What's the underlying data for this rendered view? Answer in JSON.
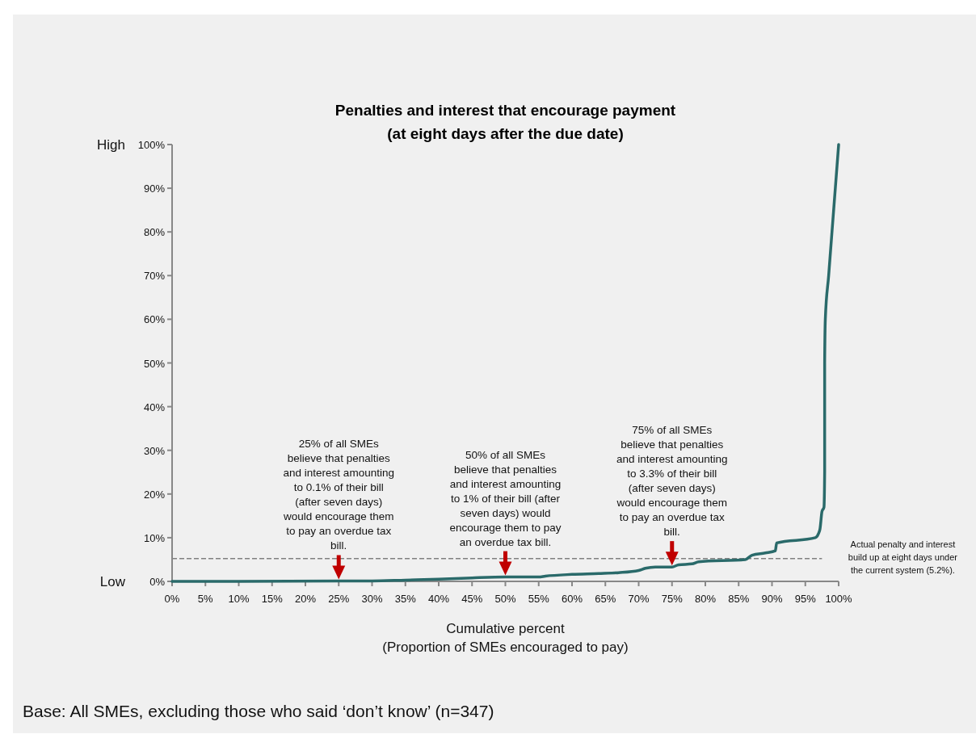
{
  "chart_data": {
    "type": "line",
    "title": "Penalties and interest that encourage payment",
    "subtitle": "(at eight days after the due date)",
    "xlabel": "Cumulative percent\n(Proportion of SMEs encouraged to pay)",
    "x": [
      0,
      10,
      25,
      30,
      35,
      40,
      45,
      50,
      55,
      56,
      60,
      64,
      67,
      70,
      71,
      72.5,
      75,
      76,
      78,
      79,
      86,
      87,
      89,
      90.5,
      90.7,
      96.5,
      97,
      97.2,
      97.5,
      97.8,
      97.9,
      97.9,
      98,
      98.5,
      99,
      99.5,
      100
    ],
    "series": [
      {
        "color": "#2a6a6a",
        "values": [
          0,
          0,
          0.1,
          0.1,
          0.3,
          0.5,
          0.8,
          1,
          1,
          1.2,
          1.6,
          1.8,
          2,
          2.5,
          3,
          3.3,
          3.3,
          3.8,
          4,
          4.5,
          5,
          6,
          6.5,
          7,
          8.8,
          10,
          11,
          12,
          16,
          17,
          25,
          50,
          60,
          70,
          80,
          90,
          100
        ]
      }
    ],
    "xlim": [
      0,
      100
    ],
    "xticks": [
      {
        "value": 0,
        "label": "0%"
      },
      {
        "value": 5,
        "label": "5%"
      },
      {
        "value": 10,
        "label": "10%"
      },
      {
        "value": 15,
        "label": "15%"
      },
      {
        "value": 20,
        "label": "20%"
      },
      {
        "value": 25,
        "label": "25%"
      },
      {
        "value": 30,
        "label": "30%"
      },
      {
        "value": 35,
        "label": "35%"
      },
      {
        "value": 40,
        "label": "40%"
      },
      {
        "value": 45,
        "label": "45%"
      },
      {
        "value": 50,
        "label": "50%"
      },
      {
        "value": 55,
        "label": "55%"
      },
      {
        "value": 60,
        "label": "60%"
      },
      {
        "value": 65,
        "label": "65%"
      },
      {
        "value": 70,
        "label": "70%"
      },
      {
        "value": 75,
        "label": "75%"
      },
      {
        "value": 80,
        "label": "80%"
      },
      {
        "value": 85,
        "label": "85%"
      },
      {
        "value": 90,
        "label": "90%"
      },
      {
        "value": 95,
        "label": "95%"
      },
      {
        "value": 100,
        "label": "100%"
      }
    ],
    "ylim": [
      0,
      100
    ],
    "yticks": [
      {
        "value": 0,
        "label": "0%"
      },
      {
        "value": 10,
        "label": "10%"
      },
      {
        "value": 20,
        "label": "20%"
      },
      {
        "value": 30,
        "label": "30%"
      },
      {
        "value": 40,
        "label": "40%"
      },
      {
        "value": 50,
        "label": "50%"
      },
      {
        "value": 60,
        "label": "60%"
      },
      {
        "value": 70,
        "label": "70%"
      },
      {
        "value": 80,
        "label": "80%"
      },
      {
        "value": 90,
        "label": "90%"
      },
      {
        "value": 100,
        "label": "100%"
      }
    ],
    "grid": false,
    "marker": "none",
    "line_style": "solid",
    "ref_lines": [
      {
        "axis": "y",
        "value": 5.2,
        "label": "Actual penalty and interest\nbuild up at eight days under\nthe current system (5.2%).",
        "color": "#808080",
        "line_style": "dashed"
      }
    ],
    "annotations": [
      {
        "text": "25% of all SMEs believe that penalties and interest amounting to 0.1% of their bill (after seven days) would encourage them to pay an overdue tax bill.",
        "x": 25,
        "y": 0.1
      },
      {
        "text": "50% of all SMEs believe that penalties and interest amounting to 1% of their bill (after seven days) would encourage them to pay an overdue tax bill.",
        "x": 50,
        "y": 1
      },
      {
        "text": "75% of all SMEs believe that penalties and interest amounting to 3.3% of their bill (after seven days) would encourage them to pay an overdue tax bill.",
        "x": 75,
        "y": 3.3
      },
      "High",
      "Low",
      "Base: All SMEs, excluding those who said ‘don’t know’ (n=347)"
    ]
  }
}
